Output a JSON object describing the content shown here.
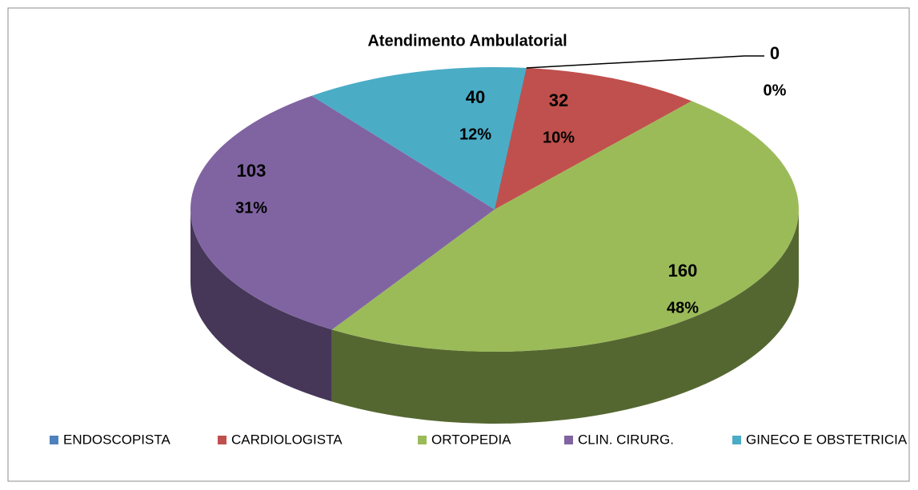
{
  "chart_data": {
    "type": "pie3d",
    "title": "Atendimento Ambulatorial",
    "categories": [
      "ENDOSCOPISTA",
      "CARDIOLOGISTA",
      "ORTOPEDIA",
      "CLIN. CIRURG.",
      "GINECO E OBSTETRICIA"
    ],
    "values": [
      0,
      32,
      160,
      103,
      40
    ],
    "percent_labels": [
      "0%",
      "10%",
      "48%",
      "31%",
      "12%"
    ],
    "colors": [
      "#4f81bd",
      "#c0504d",
      "#9bbb59",
      "#8064a2",
      "#4bacc6"
    ],
    "legend": "bottom"
  }
}
